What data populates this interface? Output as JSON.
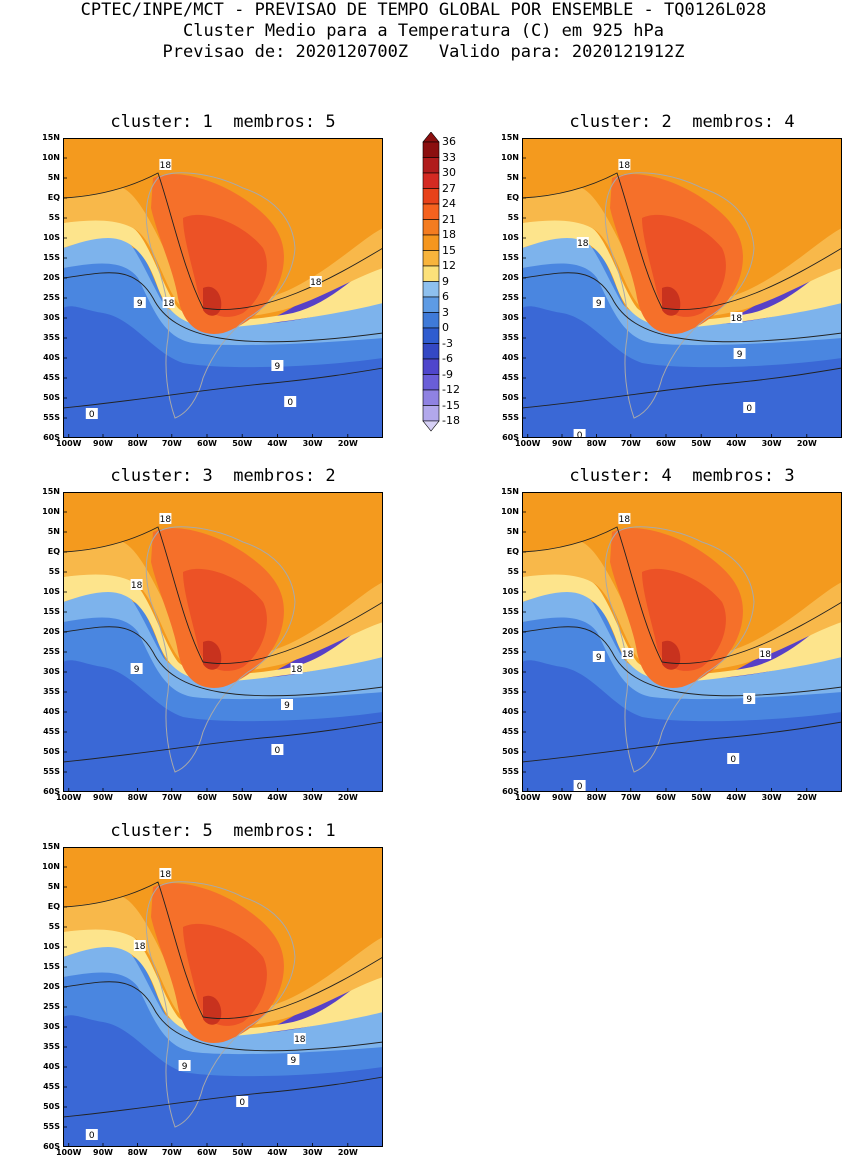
{
  "header": {
    "line1": "CPTEC/INPE/MCT - PREVISAO DE TEMPO GLOBAL POR ENSEMBLE - TQ0126L028",
    "line2": "Cluster Medio para a Temperatura (C) em 925 hPa",
    "line3": "Previsao de: 2020120700Z   Valido para: 2020121912Z"
  },
  "panels": [
    {
      "title": "cluster: 1  membros: 5"
    },
    {
      "title": "cluster: 2  membros: 4"
    },
    {
      "title": "cluster: 3  membros: 2"
    },
    {
      "title": "cluster: 4  membros: 3"
    },
    {
      "title": "cluster: 5  membros: 1"
    }
  ],
  "lat_labels": [
    "15N",
    "10N",
    "5N",
    "EQ",
    "5S",
    "10S",
    "15S",
    "20S",
    "25S",
    "30S",
    "35S",
    "40S",
    "45S",
    "50S",
    "55S",
    "60S"
  ],
  "lon_labels": [
    "100W",
    "90W",
    "80W",
    "70W",
    "60W",
    "50W",
    "40W",
    "30W",
    "20W"
  ],
  "contour_labels": [
    "18",
    "9",
    "0"
  ],
  "colorbar": {
    "levels": [
      "36",
      "33",
      "30",
      "27",
      "24",
      "21",
      "18",
      "15",
      "12",
      "9",
      "6",
      "3",
      "0",
      "-3",
      "-6",
      "-9",
      "-12",
      "-15",
      "-18"
    ],
    "colors": [
      "#8b0f0f",
      "#b01c1c",
      "#d42a22",
      "#e8421a",
      "#f5621e",
      "#f47c20",
      "#f5961e",
      "#f8b43c",
      "#fce17a",
      "#8ec0ee",
      "#5e9be4",
      "#3f7ad8",
      "#2f5ccf",
      "#3448c4",
      "#4f46cc",
      "#6a5ed8",
      "#8f82e2",
      "#b2a8ec",
      "#d6d0f6"
    ]
  }
}
